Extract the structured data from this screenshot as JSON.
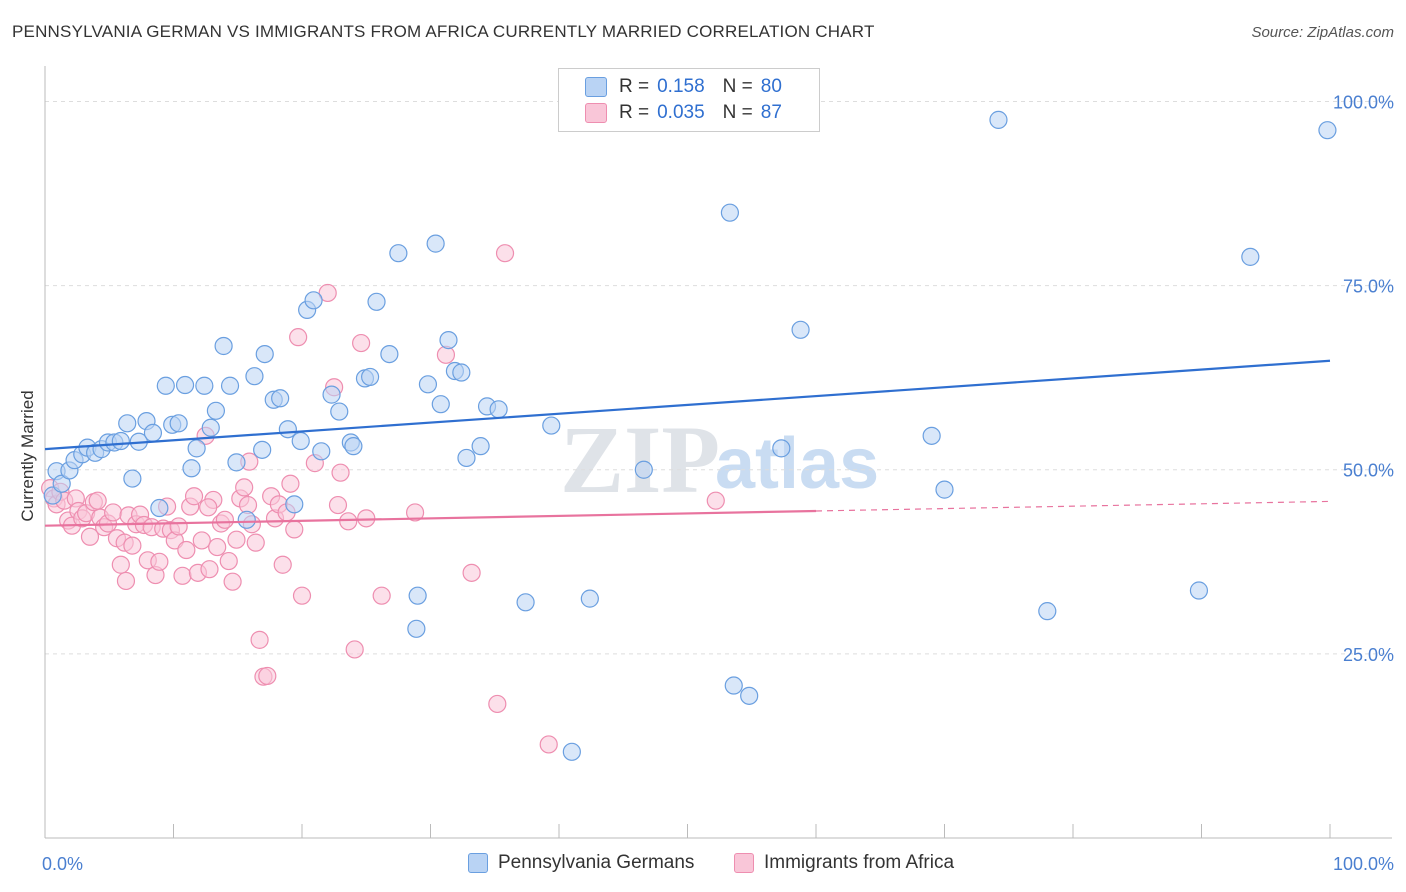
{
  "title": "PENNSYLVANIA GERMAN VS IMMIGRANTS FROM AFRICA CURRENTLY MARRIED CORRELATION CHART",
  "source": "Source: ZipAtlas.com",
  "watermark": {
    "zip": "ZIP",
    "atlas": "atlas"
  },
  "legend": {
    "r_label": "R =",
    "n_label": "N =",
    "entries": [
      {
        "r": "0.158",
        "n": "80"
      },
      {
        "r": "0.035",
        "n": "87"
      }
    ]
  },
  "x_tick_labels": {
    "left": "0.0%",
    "right": "100.0%"
  },
  "chart_data": {
    "type": "scatter",
    "title": "PENNSYLVANIA GERMAN VS IMMIGRANTS FROM AFRICA CURRENTLY MARRIED CORRELATION CHART",
    "xlabel": "",
    "ylabel": "Currently Married",
    "xlim": [
      0,
      100
    ],
    "ylim": [
      0,
      104
    ],
    "y_ticks": [
      25,
      50,
      75,
      100
    ],
    "y_tick_labels": [
      "25.0%",
      "50.0%",
      "75.0%",
      "100.0%"
    ],
    "grid": true,
    "legend_position": "bottom",
    "colors": {
      "blue": "#6a9fe0",
      "blue_fill": "#b9d3f4",
      "blue_line": "#2f6fd0",
      "pink": "#ee8eb0",
      "pink_fill": "#f9c6d8",
      "pink_line": "#e8739e",
      "tick_label": "#4a7fd0"
    },
    "series": [
      {
        "name": "Pennsylvania Germans",
        "r": 0.158,
        "n": 80,
        "trend": {
          "x": [
            0,
            100
          ],
          "y": [
            52.8,
            64.8
          ]
        },
        "points": [
          [
            0.6,
            46.5
          ],
          [
            0.9,
            49.8
          ],
          [
            1.3,
            48.1
          ],
          [
            1.9,
            49.9
          ],
          [
            2.3,
            51.3
          ],
          [
            2.9,
            52.1
          ],
          [
            3.3,
            53.0
          ],
          [
            3.9,
            52.3
          ],
          [
            4.4,
            52.8
          ],
          [
            4.9,
            53.7
          ],
          [
            5.4,
            53.7
          ],
          [
            5.9,
            53.9
          ],
          [
            6.4,
            56.3
          ],
          [
            6.8,
            48.8
          ],
          [
            7.3,
            53.8
          ],
          [
            7.9,
            56.6
          ],
          [
            8.4,
            55.0
          ],
          [
            8.9,
            44.8
          ],
          [
            9.4,
            61.4
          ],
          [
            9.9,
            56.1
          ],
          [
            10.4,
            56.3
          ],
          [
            10.9,
            61.5
          ],
          [
            11.4,
            50.2
          ],
          [
            11.8,
            52.9
          ],
          [
            12.4,
            61.4
          ],
          [
            12.9,
            55.7
          ],
          [
            13.3,
            58.0
          ],
          [
            13.9,
            66.8
          ],
          [
            14.4,
            61.4
          ],
          [
            14.9,
            51.0
          ],
          [
            15.7,
            43.2
          ],
          [
            16.3,
            62.7
          ],
          [
            16.9,
            52.7
          ],
          [
            17.1,
            65.7
          ],
          [
            17.8,
            59.5
          ],
          [
            18.3,
            59.7
          ],
          [
            18.9,
            55.5
          ],
          [
            19.4,
            45.3
          ],
          [
            19.9,
            53.9
          ],
          [
            20.4,
            71.7
          ],
          [
            20.9,
            73.0
          ],
          [
            21.5,
            52.5
          ],
          [
            22.3,
            60.2
          ],
          [
            22.9,
            57.9
          ],
          [
            23.8,
            53.7
          ],
          [
            24.0,
            53.2
          ],
          [
            24.9,
            62.4
          ],
          [
            25.3,
            62.6
          ],
          [
            25.8,
            72.8
          ],
          [
            26.8,
            65.7
          ],
          [
            27.5,
            79.4
          ],
          [
            29.0,
            32.9
          ],
          [
            28.9,
            28.4
          ],
          [
            29.8,
            61.6
          ],
          [
            30.4,
            80.7
          ],
          [
            30.8,
            58.9
          ],
          [
            31.4,
            67.6
          ],
          [
            31.9,
            63.4
          ],
          [
            32.4,
            63.2
          ],
          [
            32.8,
            51.6
          ],
          [
            33.9,
            53.2
          ],
          [
            34.4,
            58.6
          ],
          [
            35.3,
            58.2
          ],
          [
            37.4,
            32.0
          ],
          [
            39.4,
            56.0
          ],
          [
            41.0,
            11.7
          ],
          [
            42.4,
            32.5
          ],
          [
            46.6,
            50.0
          ],
          [
            53.3,
            84.9
          ],
          [
            53.6,
            20.7
          ],
          [
            54.8,
            19.3
          ],
          [
            57.3,
            52.9
          ],
          [
            58.8,
            69.0
          ],
          [
            69.0,
            54.6
          ],
          [
            70.0,
            47.3
          ],
          [
            78.0,
            30.8
          ],
          [
            89.8,
            33.6
          ],
          [
            93.8,
            78.9
          ],
          [
            74.2,
            97.5
          ],
          [
            99.8,
            96.1
          ]
        ]
      },
      {
        "name": "Immigrants from Africa",
        "r": 0.035,
        "n": 87,
        "trend": {
          "x": [
            0,
            60
          ],
          "y": [
            42.4,
            44.4
          ],
          "dashed_to": {
            "x": 100,
            "y": 45.7
          }
        },
        "points": [
          [
            0.4,
            47.5
          ],
          [
            0.7,
            46.1
          ],
          [
            0.9,
            45.3
          ],
          [
            1.2,
            47.0
          ],
          [
            1.5,
            45.8
          ],
          [
            1.8,
            43.1
          ],
          [
            2.1,
            42.4
          ],
          [
            2.4,
            46.1
          ],
          [
            2.6,
            44.4
          ],
          [
            2.9,
            43.4
          ],
          [
            3.2,
            44.1
          ],
          [
            3.5,
            40.9
          ],
          [
            3.8,
            45.6
          ],
          [
            4.1,
            45.8
          ],
          [
            4.3,
            43.5
          ],
          [
            4.6,
            42.2
          ],
          [
            4.9,
            42.7
          ],
          [
            5.3,
            44.2
          ],
          [
            5.6,
            40.7
          ],
          [
            5.9,
            37.1
          ],
          [
            6.2,
            40.1
          ],
          [
            6.5,
            43.8
          ],
          [
            6.8,
            39.7
          ],
          [
            7.1,
            42.6
          ],
          [
            7.4,
            43.9
          ],
          [
            7.7,
            42.5
          ],
          [
            8.0,
            37.7
          ],
          [
            8.3,
            42.2
          ],
          [
            8.6,
            35.7
          ],
          [
            8.9,
            37.5
          ],
          [
            9.2,
            42.0
          ],
          [
            9.5,
            45.0
          ],
          [
            9.8,
            41.8
          ],
          [
            10.1,
            40.4
          ],
          [
            10.4,
            42.3
          ],
          [
            10.7,
            35.6
          ],
          [
            11.0,
            39.1
          ],
          [
            11.3,
            45.0
          ],
          [
            11.6,
            46.4
          ],
          [
            11.9,
            36.0
          ],
          [
            12.2,
            40.4
          ],
          [
            12.5,
            54.6
          ],
          [
            12.8,
            36.5
          ],
          [
            13.1,
            45.9
          ],
          [
            13.4,
            39.5
          ],
          [
            13.7,
            42.7
          ],
          [
            14.0,
            43.2
          ],
          [
            14.3,
            37.6
          ],
          [
            14.6,
            34.8
          ],
          [
            14.9,
            40.5
          ],
          [
            15.2,
            46.1
          ],
          [
            15.5,
            47.6
          ],
          [
            15.8,
            45.2
          ],
          [
            16.1,
            42.6
          ],
          [
            16.4,
            40.1
          ],
          [
            16.7,
            26.9
          ],
          [
            17.0,
            21.9
          ],
          [
            17.3,
            22.0
          ],
          [
            17.6,
            46.4
          ],
          [
            17.9,
            43.4
          ],
          [
            18.2,
            45.3
          ],
          [
            18.5,
            37.1
          ],
          [
            18.8,
            44.2
          ],
          [
            19.1,
            48.1
          ],
          [
            19.4,
            41.9
          ],
          [
            19.7,
            68.0
          ],
          [
            20.0,
            32.9
          ],
          [
            21.0,
            50.9
          ],
          [
            22.0,
            74.0
          ],
          [
            22.5,
            61.2
          ],
          [
            23.0,
            49.6
          ],
          [
            23.6,
            43.0
          ],
          [
            24.1,
            25.6
          ],
          [
            24.6,
            67.2
          ],
          [
            25.0,
            43.4
          ],
          [
            26.2,
            32.9
          ],
          [
            28.8,
            44.2
          ],
          [
            31.2,
            65.6
          ],
          [
            33.2,
            36.0
          ],
          [
            35.2,
            18.2
          ],
          [
            35.8,
            79.4
          ],
          [
            39.2,
            12.7
          ],
          [
            52.2,
            45.8
          ],
          [
            22.8,
            45.2
          ],
          [
            12.7,
            44.9
          ],
          [
            6.3,
            34.9
          ],
          [
            15.9,
            51.1
          ]
        ]
      }
    ]
  }
}
